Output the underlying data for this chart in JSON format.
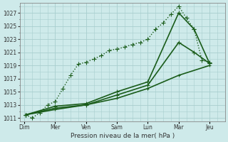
{
  "xlabel": "Pression niveau de la mer( hPa )",
  "background_color": "#ceeaea",
  "grid_color": "#a8cece",
  "line_color": "#1a5c1a",
  "ylim": [
    1010.5,
    1028.5
  ],
  "yticks": [
    1011,
    1013,
    1015,
    1017,
    1019,
    1021,
    1023,
    1025,
    1027
  ],
  "x_labels": [
    "Dim",
    "Mer",
    "Ven",
    "Sam",
    "Lun",
    "Mar",
    "Jeu"
  ],
  "x_ticks": [
    0,
    1,
    2,
    3,
    4,
    5,
    6
  ],
  "xlim": [
    -0.15,
    6.5
  ],
  "series": [
    {
      "x": [
        0.05,
        0.25,
        0.5,
        0.75,
        1.0,
        1.25,
        1.5,
        1.75,
        2.0,
        2.25,
        2.5,
        2.75,
        3.0,
        3.25,
        3.5,
        3.75,
        4.0,
        4.25,
        4.5,
        4.75,
        5.0,
        5.25,
        5.5,
        5.75,
        6.0
      ],
      "y": [
        1011.5,
        1011.0,
        1011.8,
        1013.0,
        1013.5,
        1015.5,
        1017.5,
        1019.2,
        1019.5,
        1020.0,
        1020.5,
        1021.3,
        1021.5,
        1021.8,
        1022.2,
        1022.5,
        1023.0,
        1024.5,
        1025.5,
        1026.8,
        1028.0,
        1026.2,
        1024.5,
        1019.8,
        1019.5
      ],
      "linestyle": "dotted",
      "linewidth": 1.0,
      "marker": "+",
      "markersize": 4,
      "color": "#1a5c1a"
    },
    {
      "x": [
        0.05,
        1.0,
        2.0,
        3.0,
        4.0,
        5.0,
        5.5,
        6.0
      ],
      "y": [
        1011.5,
        1012.8,
        1013.2,
        1015.0,
        1016.5,
        1027.0,
        1024.5,
        1019.3
      ],
      "linestyle": "solid",
      "linewidth": 1.2,
      "marker": "+",
      "markersize": 4,
      "color": "#1a5c1a"
    },
    {
      "x": [
        0.05,
        1.0,
        2.0,
        3.0,
        4.0,
        5.0,
        5.5,
        6.0
      ],
      "y": [
        1011.5,
        1012.5,
        1013.0,
        1014.5,
        1016.0,
        1022.5,
        1021.0,
        1019.3
      ],
      "linestyle": "solid",
      "linewidth": 1.2,
      "marker": "+",
      "markersize": 4,
      "color": "#1a5c1a"
    },
    {
      "x": [
        0.05,
        1.0,
        2.0,
        3.0,
        4.0,
        5.0,
        6.0
      ],
      "y": [
        1011.5,
        1012.3,
        1013.0,
        1014.0,
        1015.5,
        1017.5,
        1019.0
      ],
      "linestyle": "solid",
      "linewidth": 1.2,
      "marker": "+",
      "markersize": 3,
      "color": "#1a5c1a"
    }
  ]
}
